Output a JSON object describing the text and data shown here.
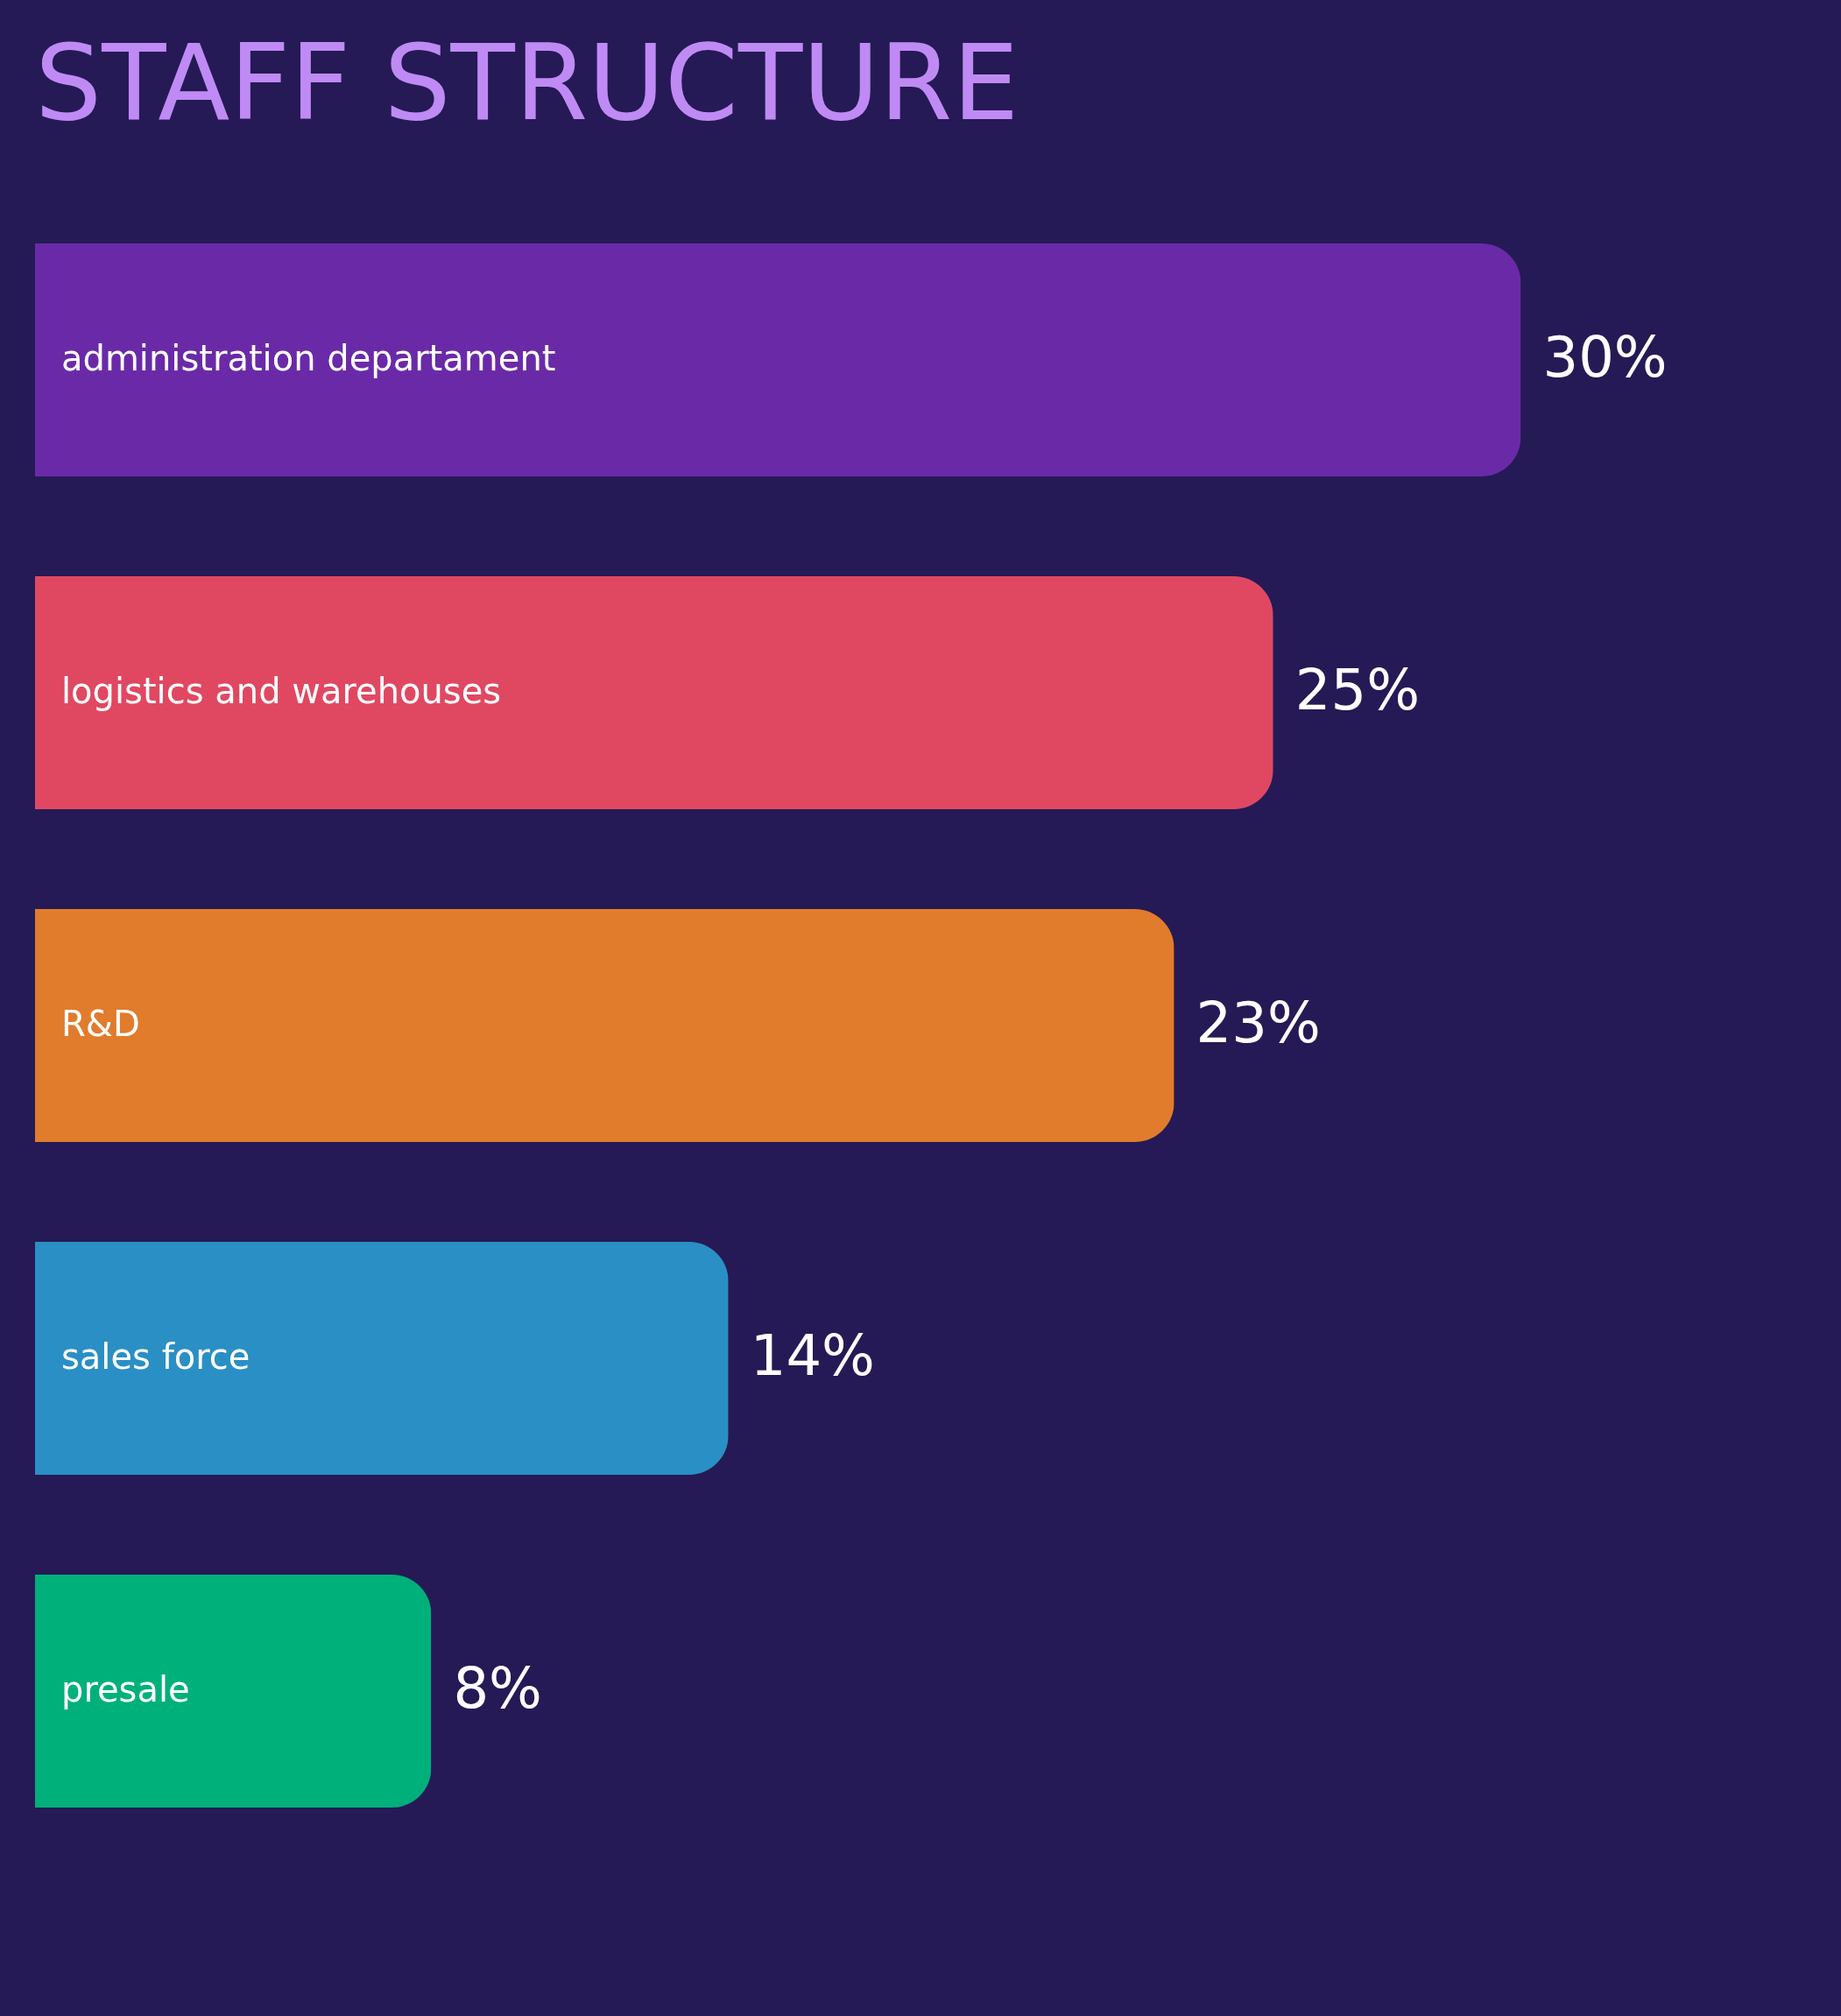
{
  "chart_data": {
    "type": "bar",
    "title": "STAFF STRUCTURE",
    "orientation": "horizontal",
    "categories": [
      "administration departament",
      "logistics and warehouses",
      "R&D",
      "sales force",
      "presale"
    ],
    "values": [
      30,
      25,
      23,
      14,
      8
    ],
    "value_labels": [
      "30%",
      "25%",
      "23%",
      "14%",
      "8%"
    ],
    "colors": [
      "#6a2aa8",
      "#e04862",
      "#e07c2c",
      "#2a8fc4",
      "#00b07a"
    ]
  }
}
